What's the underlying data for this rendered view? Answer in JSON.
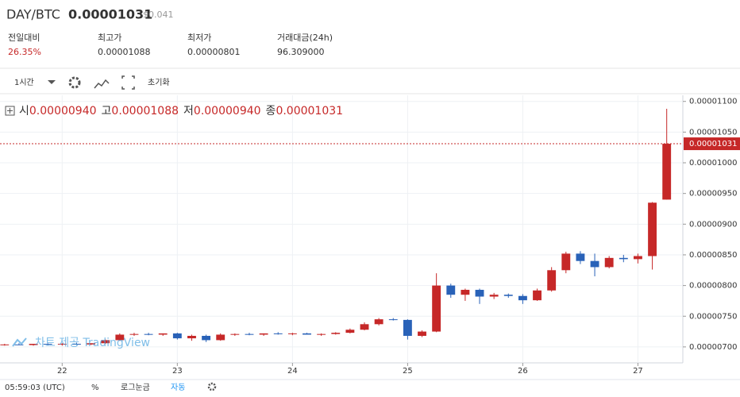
{
  "header": {
    "symbol": "DAY/BTC",
    "price": "0.00001031",
    "usd": "$0.041",
    "stats": [
      {
        "label": "전일대비",
        "value": "26.35%"
      },
      {
        "label": "최고가",
        "value": "0.00001088"
      },
      {
        "label": "최저가",
        "value": "0.00000801"
      },
      {
        "label": "거래대금(24h)",
        "value": "96.309000"
      }
    ]
  },
  "toolbar": {
    "interval": "1시간",
    "reset": "초기화"
  },
  "legend": [
    {
      "label": "시",
      "value": "0.00000940"
    },
    {
      "label": "고",
      "value": "0.00001088"
    },
    {
      "label": "저",
      "value": "0.00000940"
    },
    {
      "label": "종",
      "value": "0.00001031"
    }
  ],
  "watermark": "차트 제공 TradingView",
  "chart_data": {
    "type": "candlestick",
    "x": [
      21.5,
      21.625,
      21.75,
      21.875,
      22.0,
      22.125,
      22.25,
      22.375,
      22.5,
      22.625,
      22.75,
      22.875,
      23.0,
      23.125,
      23.25,
      23.375,
      23.5,
      23.625,
      23.75,
      23.875,
      24.0,
      24.125,
      24.25,
      24.375,
      24.5,
      24.625,
      24.75,
      24.875,
      25.0,
      25.125,
      25.25,
      25.375,
      25.5,
      25.625,
      25.75,
      25.875,
      26.0,
      26.125,
      26.25,
      26.375,
      26.5,
      26.625,
      26.75,
      26.875,
      27.0,
      27.125,
      27.25
    ],
    "open": [
      7.03e-06,
      7.04e-06,
      7.03e-06,
      7.05e-06,
      7.04e-06,
      7.05e-06,
      7.04e-06,
      7.06e-06,
      7.11e-06,
      7.2e-06,
      7.21e-06,
      7.2e-06,
      7.22e-06,
      7.14e-06,
      7.18e-06,
      7.11e-06,
      7.2e-06,
      7.21e-06,
      7.2e-06,
      7.22e-06,
      7.21e-06,
      7.22e-06,
      7.2e-06,
      7.21e-06,
      7.23e-06,
      7.28e-06,
      7.37e-06,
      7.45e-06,
      7.44e-06,
      7.18e-06,
      7.25e-06,
      8e-06,
      7.85e-06,
      7.93e-06,
      7.82e-06,
      7.85e-06,
      7.83e-06,
      7.76e-06,
      7.92e-06,
      8.25e-06,
      8.52e-06,
      8.4e-06,
      8.3e-06,
      8.45e-06,
      8.43e-06,
      8.48e-06,
      9.4e-06
    ],
    "high": [
      7.05e-06,
      7.06e-06,
      7.05e-06,
      7.06e-06,
      7.06e-06,
      7.07e-06,
      7.06e-06,
      7.12e-06,
      7.22e-06,
      7.23e-06,
      7.23e-06,
      7.22e-06,
      7.23e-06,
      7.2e-06,
      7.2e-06,
      7.22e-06,
      7.22e-06,
      7.23e-06,
      7.22e-06,
      7.24e-06,
      7.23e-06,
      7.23e-06,
      7.22e-06,
      7.24e-06,
      7.3e-06,
      7.4e-06,
      7.47e-06,
      7.47e-06,
      7.45e-06,
      7.27e-06,
      8.2e-06,
      8.03e-06,
      7.95e-06,
      7.95e-06,
      7.88e-06,
      7.87e-06,
      7.86e-06,
      7.95e-06,
      8.3e-06,
      8.55e-06,
      8.56e-06,
      8.52e-06,
      8.48e-06,
      8.5e-06,
      8.52e-06,
      9.36e-06,
      1.088e-05
    ],
    "low": [
      7.02e-06,
      7.03e-06,
      7.02e-06,
      7.03e-06,
      7.02e-06,
      7.03e-06,
      7.03e-06,
      7.05e-06,
      7.1e-06,
      7.18e-06,
      7.19e-06,
      7.18e-06,
      7.12e-06,
      7.1e-06,
      7.08e-06,
      7.1e-06,
      7.18e-06,
      7.19e-06,
      7.18e-06,
      7.2e-06,
      7.19e-06,
      7.2e-06,
      7.18e-06,
      7.2e-06,
      7.22e-06,
      7.27e-06,
      7.35e-06,
      7.43e-06,
      7.12e-06,
      7.16e-06,
      7.24e-06,
      7.8e-06,
      7.75e-06,
      7.7e-06,
      7.78e-06,
      7.8e-06,
      7.7e-06,
      7.75e-06,
      7.9e-06,
      8.2e-06,
      8.35e-06,
      8.15e-06,
      8.28e-06,
      8.38e-06,
      8.36e-06,
      8.26e-06,
      9.4e-06
    ],
    "close": [
      7.04e-06,
      7.03e-06,
      7.05e-06,
      7.04e-06,
      7.05e-06,
      7.04e-06,
      7.06e-06,
      7.11e-06,
      7.2e-06,
      7.21e-06,
      7.2e-06,
      7.22e-06,
      7.14e-06,
      7.18e-06,
      7.11e-06,
      7.2e-06,
      7.21e-06,
      7.2e-06,
      7.22e-06,
      7.21e-06,
      7.22e-06,
      7.2e-06,
      7.21e-06,
      7.23e-06,
      7.28e-06,
      7.37e-06,
      7.45e-06,
      7.44e-06,
      7.18e-06,
      7.25e-06,
      8e-06,
      7.85e-06,
      7.93e-06,
      7.82e-06,
      7.85e-06,
      7.83e-06,
      7.76e-06,
      7.92e-06,
      8.25e-06,
      8.52e-06,
      8.4e-06,
      8.3e-06,
      8.45e-06,
      8.43e-06,
      8.48e-06,
      9.35e-06,
      1.031e-05
    ],
    "up_color": "#c62828",
    "down_color": "#2962b8",
    "xlim": [
      21.46,
      27.39
    ],
    "xticks": [
      22,
      23,
      24,
      25,
      26,
      27
    ],
    "ylim": [
      6.74e-06,
      1.11e-05
    ],
    "yticks": [
      {
        "value": 7e-06,
        "label": "0.00000700"
      },
      {
        "value": 7.5e-06,
        "label": "0.00000750"
      },
      {
        "value": 8e-06,
        "label": "0.00000800"
      },
      {
        "value": 8.5e-06,
        "label": "0.00000850"
      },
      {
        "value": 9e-06,
        "label": "0.00000900"
      },
      {
        "value": 9.5e-06,
        "label": "0.00000950"
      },
      {
        "value": 1e-05,
        "label": "0.00001000"
      },
      {
        "value": 1.05e-05,
        "label": "0.00001050"
      },
      {
        "value": 1.1e-05,
        "label": "0.00001100"
      }
    ],
    "grid": true,
    "last_price": {
      "value": 1.031e-05,
      "label": "0.00001031"
    }
  },
  "footer": {
    "time": "05:59:03 (UTC)",
    "percent": "%",
    "log": "로그눈금",
    "auto": "자동"
  }
}
